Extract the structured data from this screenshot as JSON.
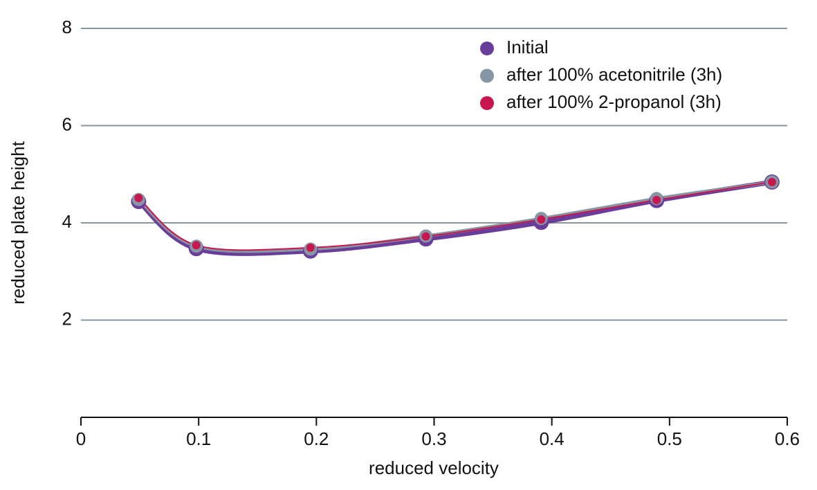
{
  "chart_data": {
    "type": "line",
    "x_label": "reduced velocity",
    "y_label": "reduced plate height",
    "x": [
      0.049,
      0.098,
      0.195,
      0.293,
      0.391,
      0.489,
      0.587
    ],
    "series": [
      {
        "name": "Initial",
        "color": "#6a3d9a",
        "values": [
          4.44,
          3.47,
          3.42,
          3.67,
          4.01,
          4.46,
          4.84
        ]
      },
      {
        "name": "after 100% acetonitrile (3h)",
        "color": "#8796a3",
        "values": [
          4.48,
          3.52,
          3.46,
          3.73,
          4.09,
          4.5,
          4.84
        ]
      },
      {
        "name": "after 100% 2-propanol (3h)",
        "color": "#c8174f",
        "values": [
          4.51,
          3.54,
          3.49,
          3.72,
          4.07,
          4.47,
          4.84
        ]
      }
    ],
    "xlim": [
      0,
      0.6
    ],
    "xticks": [
      0,
      0.1,
      0.2,
      0.3,
      0.4,
      0.5,
      0.6
    ],
    "ylim": [
      0,
      8
    ],
    "yticks": [
      2,
      4,
      6,
      8
    ],
    "grid": true,
    "legend": "upper right"
  }
}
